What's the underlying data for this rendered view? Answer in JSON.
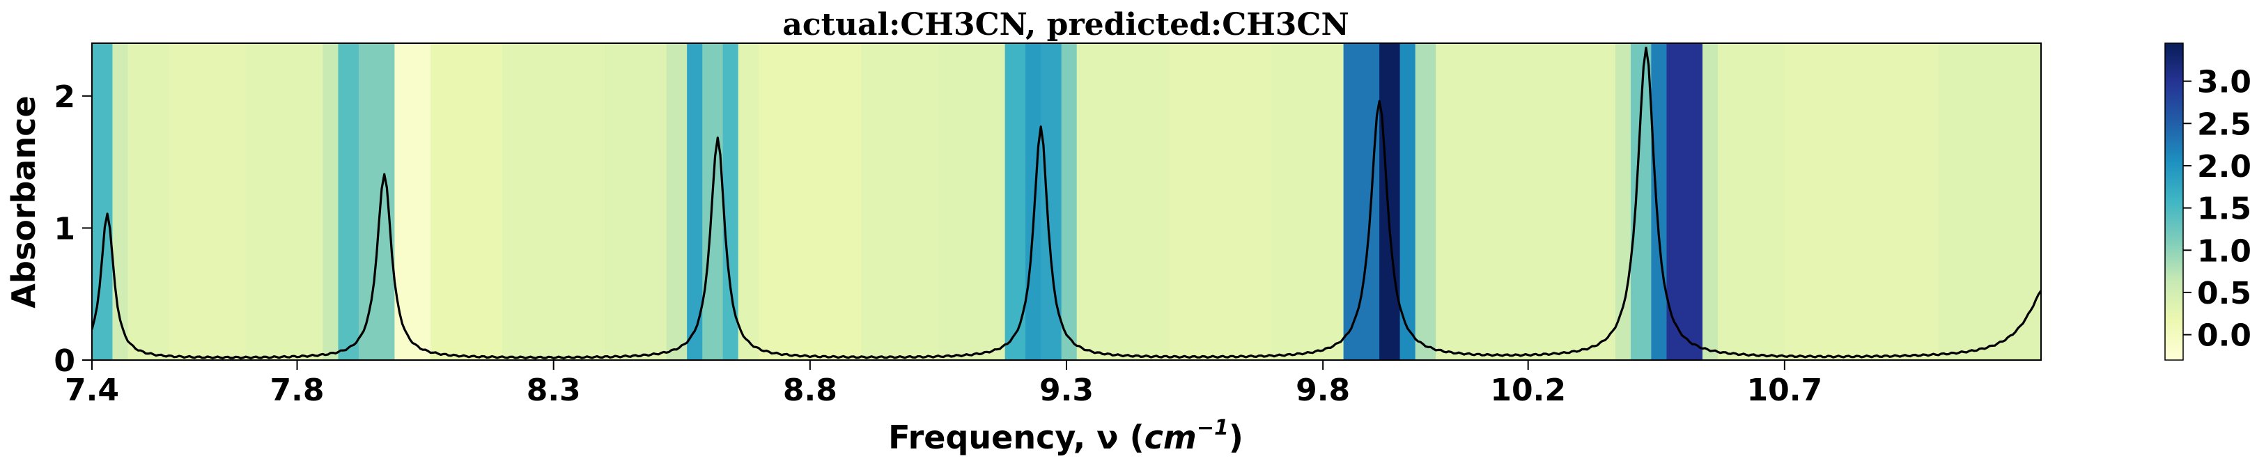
{
  "chart_data": {
    "type": "line",
    "title": "actual:CH3CN, predicted:CH3CN",
    "xlabel": "Frequency, ν (cm⁻¹)",
    "xlabel_prefix": "Frequency, ν (",
    "xlabel_unit": "cm",
    "xlabel_exp": "−1",
    "xlabel_suffix": ")",
    "ylabel": "Absorbance",
    "xlim": [
      7.4,
      11.2
    ],
    "ylim": [
      0,
      2.4
    ],
    "xticks": [
      7.4,
      7.8,
      8.3,
      8.8,
      9.3,
      9.8,
      10.2,
      10.7
    ],
    "xtick_labels": [
      "7.4",
      "7.8",
      "8.3",
      "8.8",
      "9.3",
      "9.8",
      "10.2",
      "10.7"
    ],
    "yticks": [
      0,
      1,
      2
    ],
    "ytick_labels": [
      "0",
      "1",
      "2"
    ],
    "line_color": "#000000",
    "peaks": [
      {
        "center": 7.43,
        "height": 1.1,
        "width": 0.015
      },
      {
        "center": 7.97,
        "height": 1.4,
        "width": 0.017
      },
      {
        "center": 8.62,
        "height": 1.67,
        "width": 0.017
      },
      {
        "center": 9.25,
        "height": 1.75,
        "width": 0.017
      },
      {
        "center": 9.91,
        "height": 1.95,
        "width": 0.02
      },
      {
        "center": 10.43,
        "height": 2.35,
        "width": 0.02
      },
      {
        "center": 11.22,
        "height": 0.6,
        "width": 0.05
      }
    ],
    "baseline": 0.01,
    "heatmap": {
      "colormap": "YlGnBu",
      "cbar_range": [
        -0.3,
        3.45
      ],
      "cbar_ticks": [
        0.0,
        0.5,
        1.0,
        1.5,
        2.0,
        2.5,
        3.0
      ],
      "cbar_tick_labels": [
        "0.0",
        "0.5",
        "1.0",
        "1.5",
        "2.0",
        "2.5",
        "3.0"
      ],
      "segments": [
        [
          7.4,
          7.44,
          1.5
        ],
        [
          7.44,
          7.47,
          0.5
        ],
        [
          7.47,
          7.55,
          0.3
        ],
        [
          7.55,
          7.7,
          0.25
        ],
        [
          7.7,
          7.85,
          0.3
        ],
        [
          7.85,
          7.88,
          0.6
        ],
        [
          7.88,
          7.92,
          1.4
        ],
        [
          7.92,
          7.99,
          1.1
        ],
        [
          7.99,
          8.06,
          -0.15
        ],
        [
          8.06,
          8.2,
          0.2
        ],
        [
          8.2,
          8.4,
          0.3
        ],
        [
          8.4,
          8.52,
          0.35
        ],
        [
          8.52,
          8.56,
          0.6
        ],
        [
          8.56,
          8.59,
          1.8
        ],
        [
          8.59,
          8.63,
          1.1
        ],
        [
          8.63,
          8.66,
          1.5
        ],
        [
          8.66,
          8.7,
          0.3
        ],
        [
          8.7,
          8.9,
          0.2
        ],
        [
          8.9,
          9.05,
          0.3
        ],
        [
          9.05,
          9.18,
          0.35
        ],
        [
          9.18,
          9.22,
          1.6
        ],
        [
          9.22,
          9.25,
          1.9
        ],
        [
          9.25,
          9.29,
          1.8
        ],
        [
          9.29,
          9.32,
          1.1
        ],
        [
          9.32,
          9.5,
          0.3
        ],
        [
          9.5,
          9.7,
          0.25
        ],
        [
          9.7,
          9.84,
          0.3
        ],
        [
          9.84,
          9.91,
          2.3
        ],
        [
          9.91,
          9.95,
          3.4
        ],
        [
          9.95,
          9.98,
          2.1
        ],
        [
          9.98,
          10.02,
          0.8
        ],
        [
          10.02,
          10.2,
          0.3
        ],
        [
          10.2,
          10.37,
          0.3
        ],
        [
          10.37,
          10.4,
          0.6
        ],
        [
          10.4,
          10.44,
          1.2
        ],
        [
          10.44,
          10.47,
          2.2
        ],
        [
          10.47,
          10.54,
          3.0
        ],
        [
          10.54,
          10.57,
          0.6
        ],
        [
          10.57,
          10.7,
          0.3
        ],
        [
          10.7,
          11.0,
          0.25
        ],
        [
          11.0,
          11.22,
          0.35
        ]
      ]
    }
  }
}
